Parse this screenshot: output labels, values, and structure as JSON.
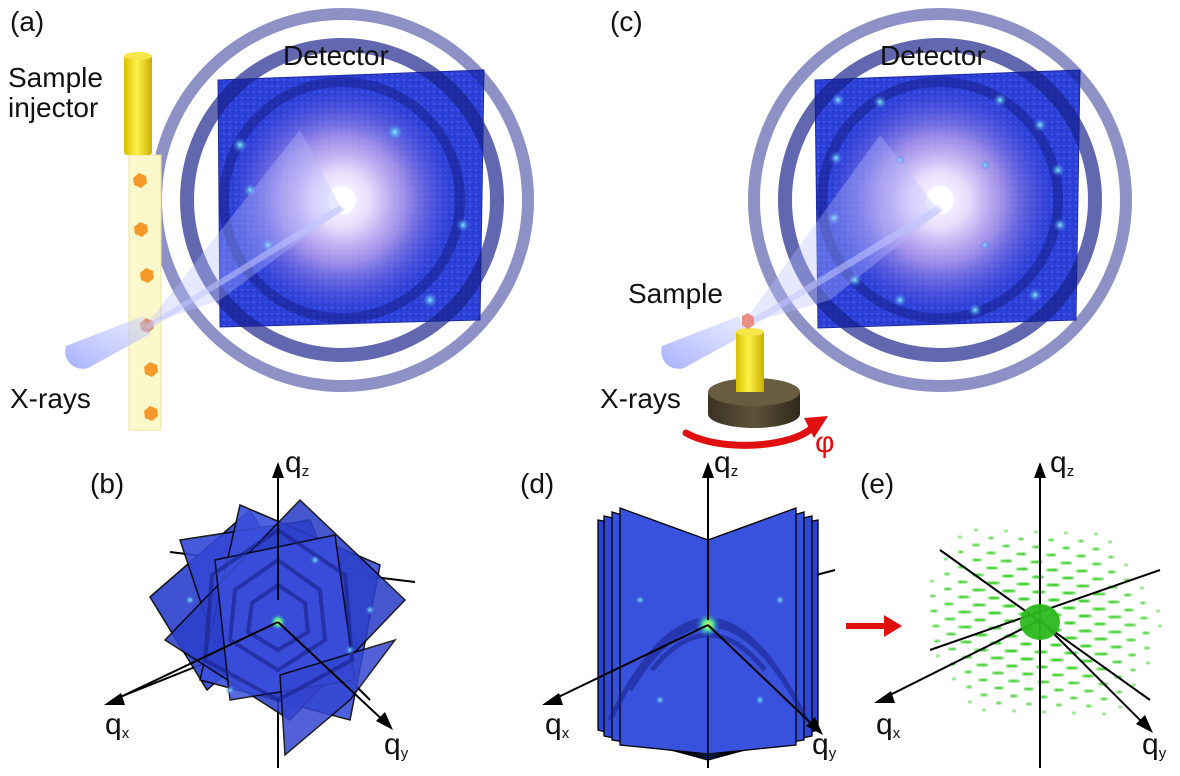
{
  "panels": {
    "a": {
      "label": "(a)",
      "detector_label": "Detector",
      "injector_label": "Sample\ninjector",
      "xray_label": "X-rays"
    },
    "b": {
      "label": "(b)"
    },
    "c": {
      "label": "(c)",
      "detector_label": "Detector",
      "sample_label": "Sample",
      "xray_label": "X-rays",
      "rotation_label": "φ"
    },
    "d": {
      "label": "(d)"
    },
    "e": {
      "label": "(e)"
    }
  },
  "axes": {
    "qz": {
      "main": "q",
      "sub": "z"
    },
    "qx": {
      "main": "q",
      "sub": "x"
    },
    "qy": {
      "main": "q",
      "sub": "y"
    }
  },
  "colors": {
    "detector_blue": "#2a3fd6",
    "detector_dark": "#1a248f",
    "beam": "#aab4ff",
    "injector_yellow": "#f2dc10",
    "crystal_orange": "#f59a2a",
    "rotation_red": "#e01010",
    "reciprocal_green": "#3ccf2a",
    "mount_brown": "#4a3f2c"
  },
  "icons": {
    "arrow": "red-right-arrow",
    "rotation": "curved-rotation-arrow"
  }
}
